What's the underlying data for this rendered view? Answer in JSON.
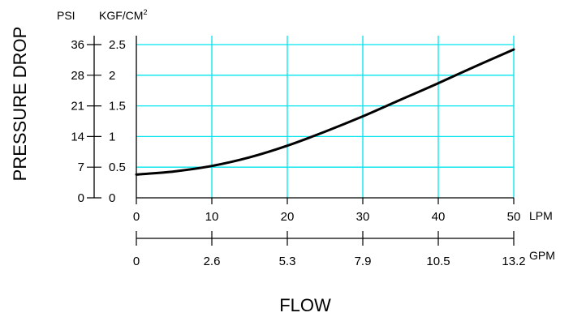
{
  "chart_data": {
    "type": "line",
    "xlabel": "FLOW",
    "ylabel": "PRESSURE DROP",
    "x_unit_primary": "LPM",
    "x_unit_secondary": "GPM",
    "y_unit_primary": "KGF/CM",
    "y_unit_primary_sup": "2",
    "y_unit_secondary": "PSI",
    "xlim": [
      0,
      50
    ],
    "ylim": [
      0,
      2.5
    ],
    "x_ticks_lpm": [
      "0",
      "10",
      "20",
      "30",
      "40",
      "50"
    ],
    "x_ticks_gpm": [
      "0",
      "2.6",
      "5.3",
      "7.9",
      "10.5",
      "13.2"
    ],
    "y_ticks_kgf": [
      "0",
      "0.5",
      "1",
      "1.5",
      "2",
      "2.5"
    ],
    "y_ticks_psi": [
      "0",
      "7",
      "14",
      "21",
      "28",
      "36"
    ],
    "grid": true,
    "grid_color": "#00e5ee",
    "line_color": "#000000",
    "series": [
      {
        "x": [
          0,
          5,
          10,
          15,
          20,
          25,
          30,
          35,
          40,
          45,
          50
        ],
        "y": [
          0.38,
          0.43,
          0.52,
          0.66,
          0.85,
          1.08,
          1.33,
          1.6,
          1.87,
          2.15,
          2.42
        ]
      }
    ]
  }
}
